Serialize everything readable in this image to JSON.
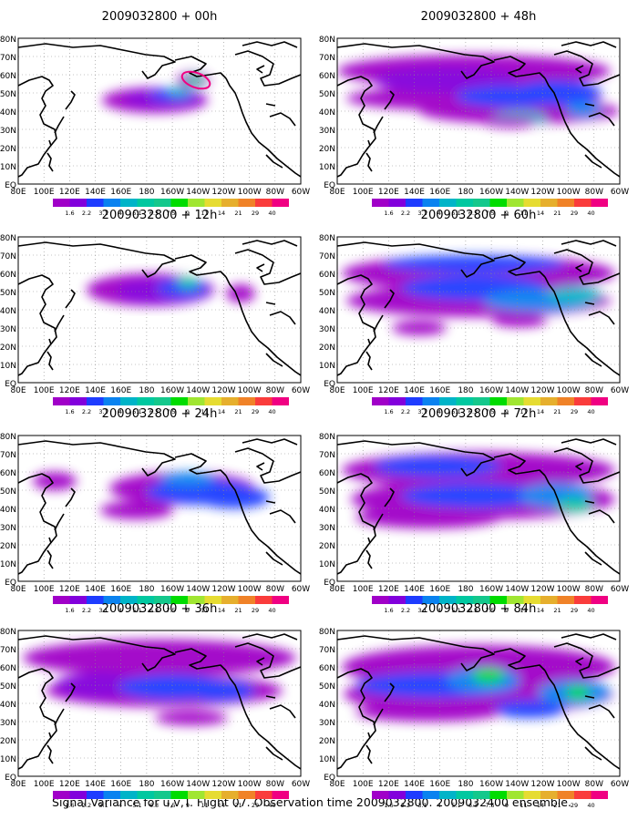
{
  "caption": "Signal Variance for u,v,T. Flight 07. Observation time 2009032800. 2009032400 ensemble.",
  "lon_labels": [
    "80E",
    "100E",
    "120E",
    "140E",
    "160E",
    "180",
    "160W",
    "140W",
    "120W",
    "100W",
    "80W",
    "60W"
  ],
  "lat_labels": [
    "EQ",
    "10N",
    "20N",
    "30N",
    "40N",
    "50N",
    "60N",
    "70N",
    "80N"
  ],
  "colorbar": {
    "labels": [
      "1.6",
      "2.2",
      "3.1",
      "4",
      "5.1",
      "6.3",
      "7.5",
      "9",
      "11",
      "14",
      "21",
      "29",
      "40"
    ],
    "colors": [
      "#a000c8",
      "#8200dc",
      "#1e3cff",
      "#0a82f0",
      "#00b4c8",
      "#00c8a0",
      "#14c88c",
      "#00dc00",
      "#a0e632",
      "#e6dc32",
      "#e6af2d",
      "#f08228",
      "#fa3c3c",
      "#f00082"
    ]
  },
  "panels": [
    {
      "title": "2009032800 + 00h"
    },
    {
      "title": "2009032800 + 48h"
    },
    {
      "title": "2009032800 + 12h"
    },
    {
      "title": "2009032800 + 60h"
    },
    {
      "title": "2009032800 + 24h"
    },
    {
      "title": "2009032800 + 72h"
    },
    {
      "title": "2009032800 + 36h"
    },
    {
      "title": "2009032800 + 84h"
    }
  ]
}
